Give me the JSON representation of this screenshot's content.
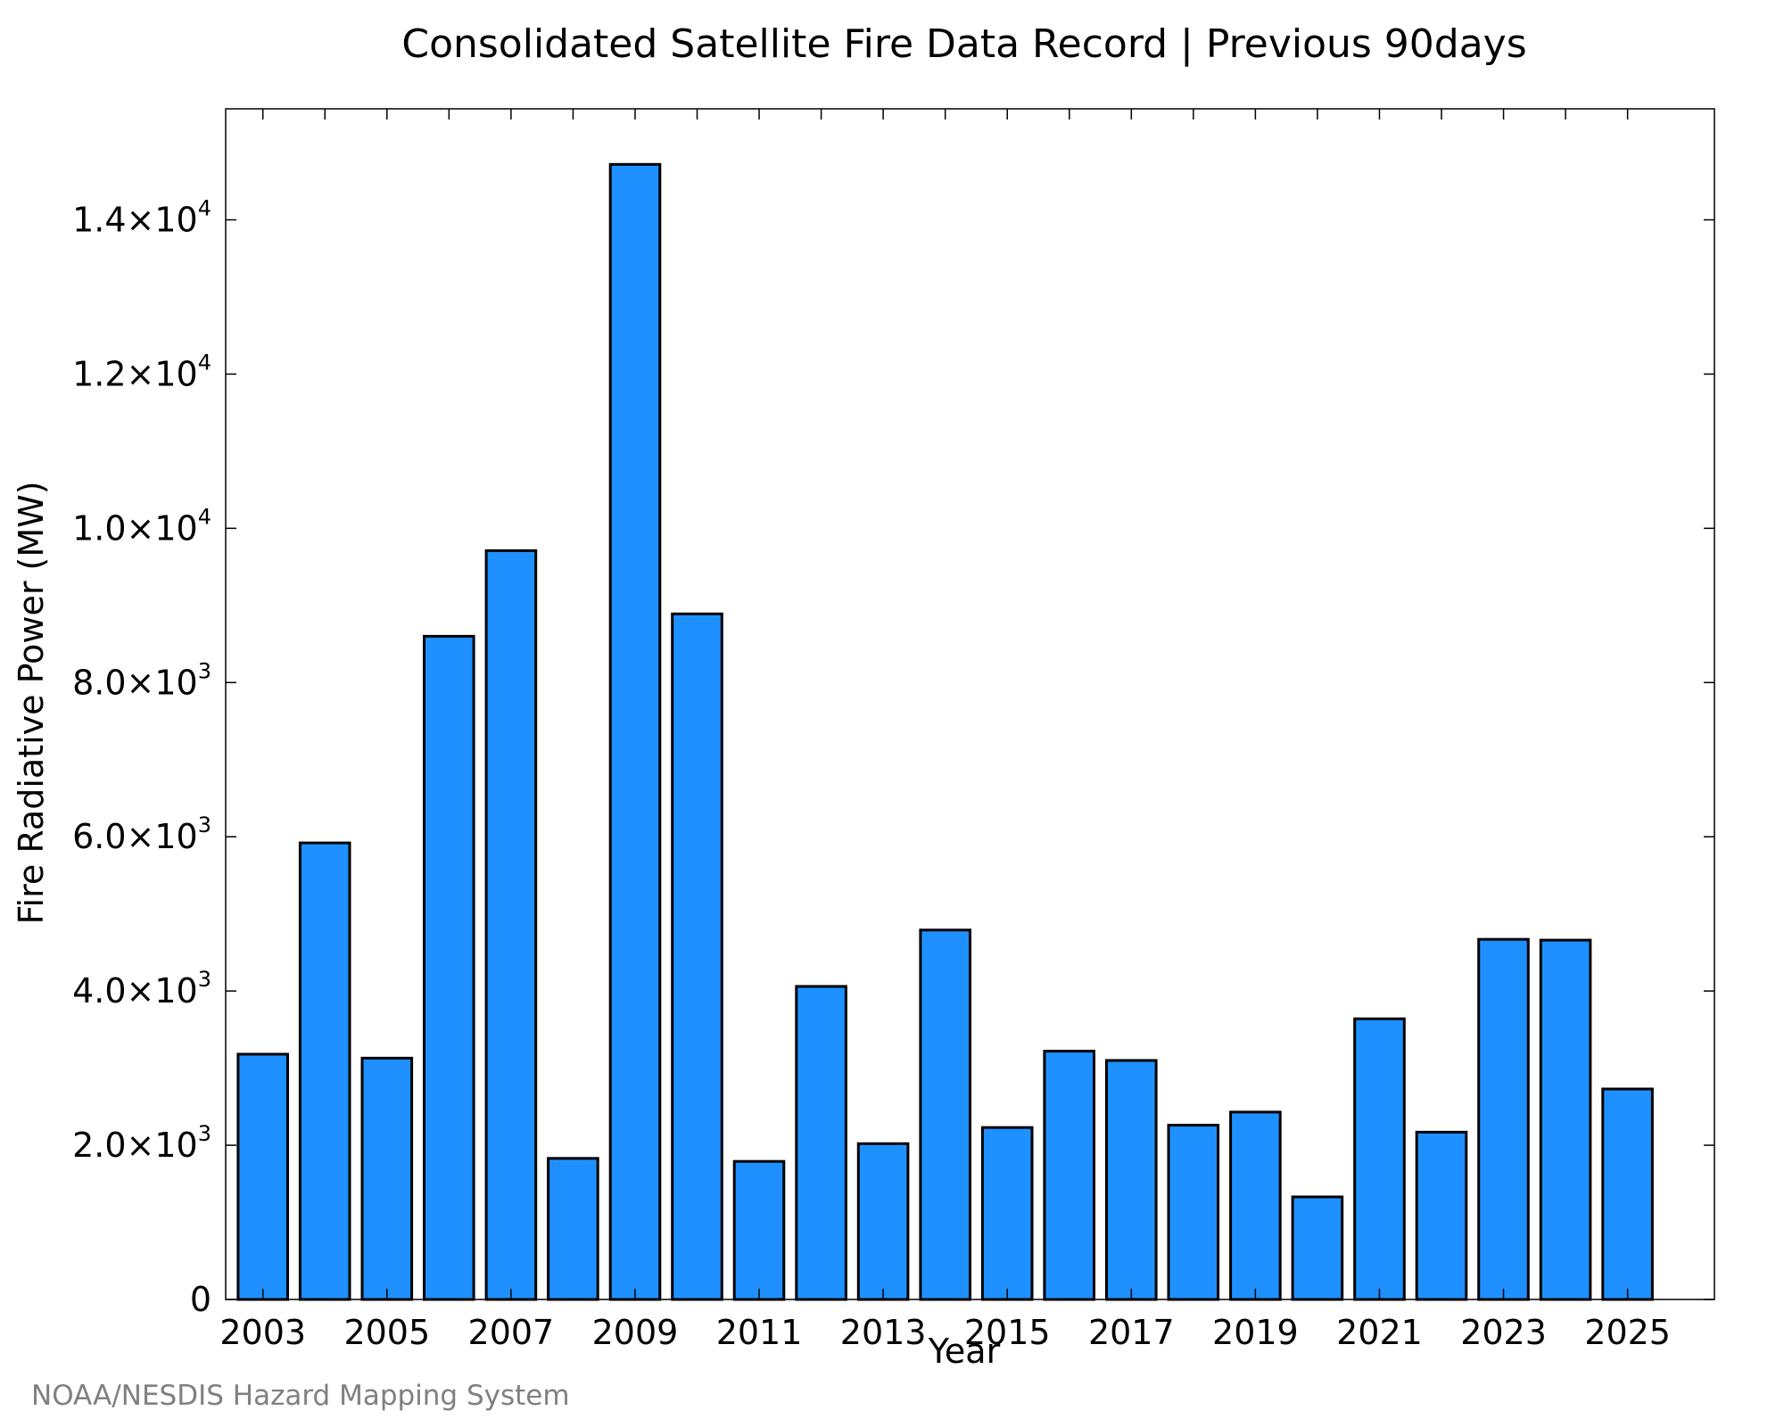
{
  "chart_data": {
    "type": "bar",
    "title": "Consolidated Satellite Fire Data Record | Previous 90days",
    "xlabel": "Year",
    "ylabel": "Fire Radiative Power (MW)",
    "source": "NOAA/NESDIS Hazard Mapping System",
    "categories": [
      "2003",
      "2004",
      "2005",
      "2006",
      "2007",
      "2008",
      "2009",
      "2010",
      "2011",
      "2012",
      "2013",
      "2014",
      "2015",
      "2016",
      "2017",
      "2018",
      "2019",
      "2020",
      "2021",
      "2022",
      "2023",
      "2024",
      "2025"
    ],
    "values": [
      3180,
      5920,
      3130,
      8600,
      9710,
      1830,
      14720,
      8890,
      1790,
      4060,
      2020,
      4790,
      2230,
      3220,
      3100,
      2260,
      2430,
      1330,
      3640,
      2170,
      4670,
      4660,
      2730
    ],
    "xtick_labels": [
      "2003",
      "2005",
      "2007",
      "2009",
      "2011",
      "2013",
      "2015",
      "2017",
      "2019",
      "2021",
      "2023",
      "2025"
    ],
    "yticks": [
      {
        "value": 0,
        "mantissa": "0",
        "exponent": ""
      },
      {
        "value": 2000,
        "mantissa": "2.0×10",
        "exponent": "3"
      },
      {
        "value": 4000,
        "mantissa": "4.0×10",
        "exponent": "3"
      },
      {
        "value": 6000,
        "mantissa": "6.0×10",
        "exponent": "3"
      },
      {
        "value": 8000,
        "mantissa": "8.0×10",
        "exponent": "3"
      },
      {
        "value": 10000,
        "mantissa": "1.0×10",
        "exponent": "4"
      },
      {
        "value": 12000,
        "mantissa": "1.2×10",
        "exponent": "4"
      },
      {
        "value": 14000,
        "mantissa": "1.4×10",
        "exponent": "4"
      }
    ],
    "ylim": [
      0,
      15440
    ],
    "xlim": [
      2002.4,
      2026.4
    ],
    "bar_color": "#1e90ff",
    "edge_color": "#000000",
    "grid": false,
    "legend": "none"
  }
}
